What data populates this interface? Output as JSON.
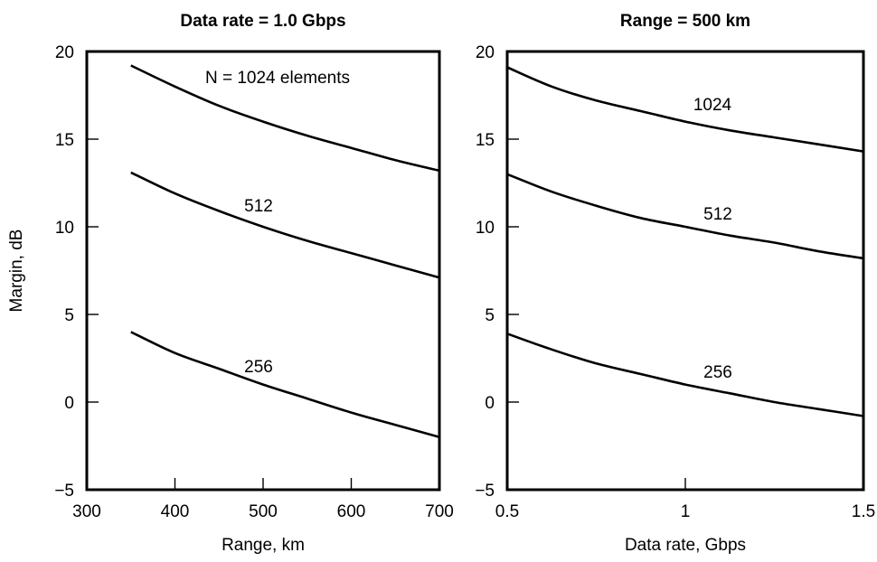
{
  "chart_data": [
    {
      "type": "line",
      "title": "Data rate = 1.0 Gbps",
      "xlabel": "Range, km",
      "ylabel": "Margin, dB",
      "xlim": [
        300,
        700
      ],
      "ylim": [
        -5,
        20
      ],
      "xticks": [
        300,
        400,
        500,
        600,
        700
      ],
      "yticks": [
        -5,
        0,
        5,
        10,
        15,
        20
      ],
      "x_tick_labels": [
        "300",
        "400",
        "500",
        "600",
        "700"
      ],
      "y_tick_labels": [
        "−5",
        "0",
        "5",
        "10",
        "15",
        "20"
      ],
      "grid": false,
      "series": [
        {
          "name": "N = 1024 elements",
          "x": [
            350,
            400,
            450,
            500,
            550,
            600,
            650,
            700
          ],
          "y": [
            19.2,
            18.0,
            16.9,
            16.0,
            15.2,
            14.5,
            13.8,
            13.2
          ]
        },
        {
          "name": "512",
          "x": [
            350,
            400,
            450,
            500,
            550,
            600,
            650,
            700
          ],
          "y": [
            13.1,
            11.9,
            10.9,
            10.0,
            9.2,
            8.5,
            7.8,
            7.1
          ]
        },
        {
          "name": "256",
          "x": [
            350,
            400,
            450,
            500,
            550,
            600,
            650,
            700
          ],
          "y": [
            4.0,
            2.8,
            1.9,
            1.0,
            0.2,
            -0.6,
            -1.3,
            -2.0
          ]
        }
      ]
    },
    {
      "type": "line",
      "title": "Range = 500 km",
      "xlabel": "Data rate, Gbps",
      "ylabel": "",
      "xlim": [
        0.5,
        1.5
      ],
      "ylim": [
        -5,
        20
      ],
      "xticks": [
        0.5,
        1,
        1.5
      ],
      "yticks": [
        -5,
        0,
        5,
        10,
        15,
        20
      ],
      "x_tick_labels": [
        "0.5",
        "1",
        "1.5"
      ],
      "y_tick_labels": [
        "−5",
        "0",
        "5",
        "10",
        "15",
        "20"
      ],
      "grid": false,
      "series": [
        {
          "name": "1024",
          "x": [
            0.5,
            0.625,
            0.75,
            0.875,
            1.0,
            1.125,
            1.25,
            1.375,
            1.5
          ],
          "y": [
            19.1,
            18.0,
            17.2,
            16.6,
            16.0,
            15.5,
            15.1,
            14.7,
            14.3
          ]
        },
        {
          "name": "512",
          "x": [
            0.5,
            0.625,
            0.75,
            0.875,
            1.0,
            1.125,
            1.25,
            1.375,
            1.5
          ],
          "y": [
            13.0,
            12.0,
            11.2,
            10.5,
            10.0,
            9.5,
            9.1,
            8.6,
            8.2
          ]
        },
        {
          "name": "256",
          "x": [
            0.5,
            0.625,
            0.75,
            0.875,
            1.0,
            1.125,
            1.25,
            1.375,
            1.5
          ],
          "y": [
            3.9,
            3.0,
            2.2,
            1.6,
            1.0,
            0.5,
            0.0,
            -0.4,
            -0.8
          ]
        }
      ]
    }
  ]
}
